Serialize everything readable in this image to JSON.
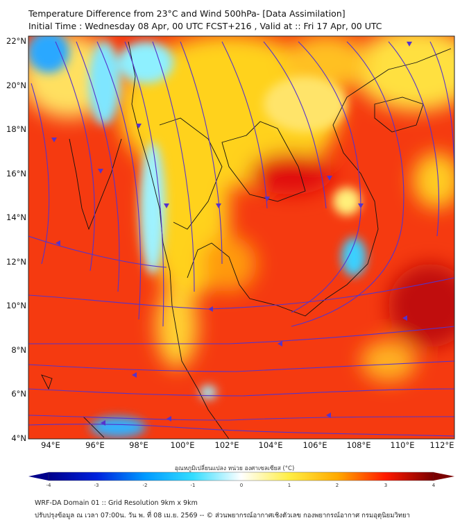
{
  "header": {
    "title": "Temperature Difference from 23°C and Wind 500hPa- [Data Assimilation]",
    "subtitle": "Initial Time : Wednesday 08 Apr, 00 UTC FCST+216 , Valid at ::  Fri 17 Apr, 00 UTC"
  },
  "map": {
    "lat_ticks": [
      "22°N",
      "20°N",
      "18°N",
      "16°N",
      "14°N",
      "12°N",
      "10°N",
      "8°N",
      "6°N",
      "4°N"
    ],
    "lon_ticks": [
      "94°E",
      "96°E",
      "98°E",
      "100°E",
      "102°E",
      "104°E",
      "106°E",
      "108°E",
      "110°E",
      "112°E"
    ],
    "streamline_color": "#5533cc"
  },
  "colorbar": {
    "title": "อุณหภูมิเปลี่ยนแปลง หน่วย องศาเซลเซียส (°C)",
    "ticks": [
      "-4",
      "-3",
      "-2",
      "-1",
      "0",
      "1",
      "2",
      "3",
      "4"
    ],
    "range": [
      -4,
      4
    ],
    "colors": [
      "#00008b",
      "#0033ff",
      "#00aaff",
      "#44eeff",
      "#ffffff",
      "#ffff44",
      "#ffaa00",
      "#ff2200",
      "#7a0000"
    ]
  },
  "footer": {
    "line1": "WRF-DA Domain 01 :: Grid Resolution 9km x 9km",
    "line2": "ปรับปรุงข้อมูล ณ เวลา 07:00น. วัน พ. ที่ 08 เม.ย. 2569 -- © ส่วนพยากรณ์อากาศเชิงตัวเลข กองพยากรณ์อากาศ กรมอุตุนิยมวิทยา"
  }
}
